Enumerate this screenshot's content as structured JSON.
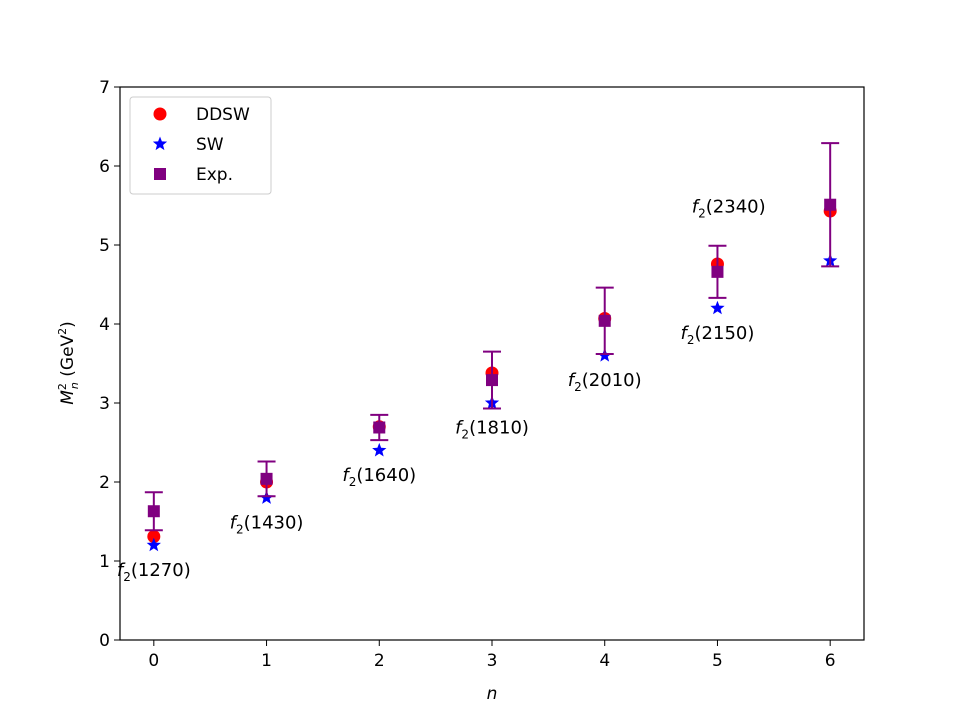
{
  "chart_data": {
    "type": "scatter",
    "title": "",
    "xlabel": "n",
    "ylabel_main": "M",
    "ylabel_sup": "2",
    "ylabel_sub": "n",
    "ylabel_unit_open": " (GeV",
    "ylabel_unit_sup": "2",
    "ylabel_unit_close": ")",
    "xlim": [
      -0.3,
      6.3
    ],
    "ylim": [
      0,
      7
    ],
    "xticks": [
      0,
      1,
      2,
      3,
      4,
      5,
      6
    ],
    "yticks": [
      0,
      1,
      2,
      3,
      4,
      5,
      6,
      7
    ],
    "legend_position": "top-left",
    "series": [
      {
        "name": "DDSW",
        "marker": "circle",
        "color": "#ff0000",
        "x": [
          0,
          1,
          2,
          3,
          4,
          5,
          6
        ],
        "y": [
          1.31,
          2.0,
          2.7,
          3.38,
          4.07,
          4.76,
          5.43
        ]
      },
      {
        "name": "SW",
        "marker": "star",
        "color": "#0000ff",
        "x": [
          0,
          1,
          2,
          3,
          4,
          5,
          6
        ],
        "y": [
          1.2,
          1.8,
          2.4,
          3.0,
          3.6,
          4.2,
          4.8
        ]
      },
      {
        "name": "Exp.",
        "marker": "square",
        "color": "#800080",
        "x": [
          0,
          1,
          2,
          3,
          4,
          5,
          6
        ],
        "y": [
          1.63,
          2.04,
          2.69,
          3.29,
          4.04,
          4.66,
          5.51
        ],
        "yerr": [
          0.24,
          0.22,
          0.16,
          0.36,
          0.42,
          0.33,
          0.78
        ]
      }
    ],
    "annotations": [
      {
        "main": "f",
        "sub": "2",
        "rest": "(1270)",
        "x": 0,
        "y": 0.8
      },
      {
        "main": "f",
        "sub": "2",
        "rest": "(1430)",
        "x": 1,
        "y": 1.4
      },
      {
        "main": "f",
        "sub": "2",
        "rest": "(1640)",
        "x": 2,
        "y": 2.0
      },
      {
        "main": "f",
        "sub": "2",
        "rest": "(1810)",
        "x": 3,
        "y": 2.6
      },
      {
        "main": "f",
        "sub": "2",
        "rest": "(2010)",
        "x": 4,
        "y": 3.2
      },
      {
        "main": "f",
        "sub": "2",
        "rest": "(2150)",
        "x": 5,
        "y": 3.8
      },
      {
        "main": "f",
        "sub": "2",
        "rest": "(2340)",
        "x": 5.1,
        "y": 5.4
      }
    ]
  }
}
